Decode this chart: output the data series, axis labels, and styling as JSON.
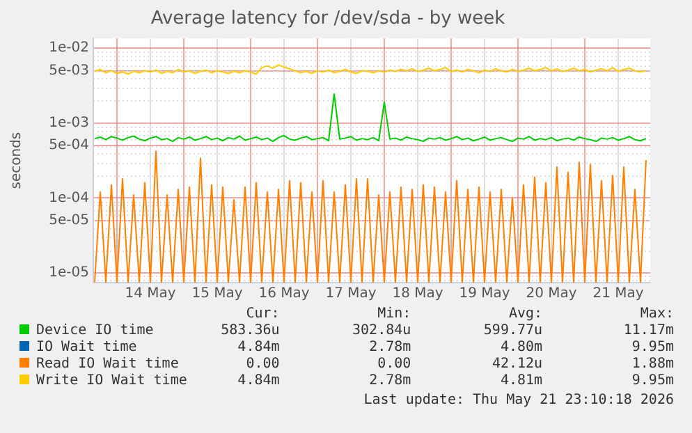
{
  "chart_data": {
    "type": "line",
    "title": "Average latency for /dev/sda - by week",
    "ylabel": "seconds",
    "log": "y",
    "grid": true,
    "legend": "bottom",
    "marker": "none",
    "xlim": [
      "2026-05-13T15:30",
      "2026-05-21T23:30"
    ],
    "xticks": [
      {
        "value": "2026-05-14T00:00",
        "label": null
      },
      {
        "value": "2026-05-14T12:00",
        "label": "14 May"
      },
      {
        "value": "2026-05-15T00:00",
        "label": null
      },
      {
        "value": "2026-05-15T12:00",
        "label": "15 May"
      },
      {
        "value": "2026-05-16T00:00",
        "label": null
      },
      {
        "value": "2026-05-16T12:00",
        "label": "16 May"
      },
      {
        "value": "2026-05-17T00:00",
        "label": null
      },
      {
        "value": "2026-05-17T12:00",
        "label": "17 May"
      },
      {
        "value": "2026-05-18T00:00",
        "label": null
      },
      {
        "value": "2026-05-18T12:00",
        "label": "18 May"
      },
      {
        "value": "2026-05-19T00:00",
        "label": null
      },
      {
        "value": "2026-05-19T12:00",
        "label": "19 May"
      },
      {
        "value": "2026-05-20T00:00",
        "label": null
      },
      {
        "value": "2026-05-20T12:00",
        "label": "20 May"
      },
      {
        "value": "2026-05-21T00:00",
        "label": null
      },
      {
        "value": "2026-05-21T12:00",
        "label": "21 May"
      }
    ],
    "ylim": [
      7.4e-06,
      0.0135
    ],
    "yticks": [
      {
        "value": 0.01,
        "label": "1e-02"
      },
      {
        "value": 0.005,
        "label": "5e-03"
      },
      {
        "value": 0.001,
        "label": "1e-03"
      },
      {
        "value": 0.0005,
        "label": "5e-04"
      },
      {
        "value": 0.0001,
        "label": "1e-04"
      },
      {
        "value": 5e-05,
        "label": "5e-05"
      },
      {
        "value": 1e-05,
        "label": "1e-05"
      }
    ],
    "x": [
      "2026-05-13T16:00",
      "2026-05-13T18:00",
      "2026-05-13T20:00",
      "2026-05-13T22:00",
      "2026-05-14T00:00",
      "2026-05-14T02:00",
      "2026-05-14T04:00",
      "2026-05-14T06:00",
      "2026-05-14T08:00",
      "2026-05-14T10:00",
      "2026-05-14T12:00",
      "2026-05-14T14:00",
      "2026-05-14T16:00",
      "2026-05-14T18:00",
      "2026-05-14T20:00",
      "2026-05-14T22:00",
      "2026-05-15T00:00",
      "2026-05-15T02:00",
      "2026-05-15T04:00",
      "2026-05-15T06:00",
      "2026-05-15T08:00",
      "2026-05-15T10:00",
      "2026-05-15T12:00",
      "2026-05-15T14:00",
      "2026-05-15T16:00",
      "2026-05-15T18:00",
      "2026-05-15T20:00",
      "2026-05-15T22:00",
      "2026-05-16T00:00",
      "2026-05-16T02:00",
      "2026-05-16T04:00",
      "2026-05-16T06:00",
      "2026-05-16T08:00",
      "2026-05-16T10:00",
      "2026-05-16T12:00",
      "2026-05-16T14:00",
      "2026-05-16T16:00",
      "2026-05-16T18:00",
      "2026-05-16T20:00",
      "2026-05-16T22:00",
      "2026-05-17T00:00",
      "2026-05-17T02:00",
      "2026-05-17T04:00",
      "2026-05-17T06:00",
      "2026-05-17T08:00",
      "2026-05-17T10:00",
      "2026-05-17T12:00",
      "2026-05-17T14:00",
      "2026-05-17T16:00",
      "2026-05-17T18:00",
      "2026-05-17T20:00",
      "2026-05-17T22:00",
      "2026-05-18T00:00",
      "2026-05-18T02:00",
      "2026-05-18T04:00",
      "2026-05-18T06:00",
      "2026-05-18T08:00",
      "2026-05-18T10:00",
      "2026-05-18T12:00",
      "2026-05-18T14:00",
      "2026-05-18T16:00",
      "2026-05-18T18:00",
      "2026-05-18T20:00",
      "2026-05-18T22:00",
      "2026-05-19T00:00",
      "2026-05-19T02:00",
      "2026-05-19T04:00",
      "2026-05-19T06:00",
      "2026-05-19T08:00",
      "2026-05-19T10:00",
      "2026-05-19T12:00",
      "2026-05-19T14:00",
      "2026-05-19T16:00",
      "2026-05-19T18:00",
      "2026-05-19T20:00",
      "2026-05-19T22:00",
      "2026-05-20T00:00",
      "2026-05-20T02:00",
      "2026-05-20T04:00",
      "2026-05-20T06:00",
      "2026-05-20T08:00",
      "2026-05-20T10:00",
      "2026-05-20T12:00",
      "2026-05-20T14:00",
      "2026-05-20T16:00",
      "2026-05-20T18:00",
      "2026-05-20T20:00",
      "2026-05-20T22:00",
      "2026-05-21T00:00",
      "2026-05-21T02:00",
      "2026-05-21T04:00",
      "2026-05-21T06:00",
      "2026-05-21T08:00",
      "2026-05-21T10:00",
      "2026-05-21T12:00",
      "2026-05-21T14:00",
      "2026-05-21T16:00",
      "2026-05-21T18:00",
      "2026-05-21T20:00",
      "2026-05-21T22:00"
    ],
    "series": [
      {
        "name": "Device IO time",
        "color": "#00cc00",
        "values": [
          0.00062,
          0.00065,
          0.0006,
          0.00066,
          0.00063,
          0.00059,
          0.00064,
          0.00067,
          0.00061,
          0.00058,
          0.00063,
          0.00066,
          0.0006,
          0.00062,
          0.00057,
          0.00064,
          0.00061,
          0.00065,
          0.00059,
          0.00062,
          0.00066,
          0.0006,
          0.00063,
          0.00058,
          0.00064,
          0.00061,
          0.00067,
          0.00059,
          0.00062,
          0.00065,
          0.0006,
          0.00063,
          0.00057,
          0.00064,
          0.00068,
          0.00061,
          0.00059,
          0.00063,
          0.00066,
          0.0006,
          0.00062,
          0.00064,
          0.00058,
          0.00245,
          0.00061,
          0.00063,
          0.00066,
          0.00059,
          0.00062,
          0.0006,
          0.00064,
          0.00058,
          0.0019,
          0.00061,
          0.00063,
          0.00059,
          0.00065,
          0.00062,
          0.0006,
          0.00057,
          0.00063,
          0.00061,
          0.00064,
          0.00059,
          0.00062,
          0.00066,
          0.0006,
          0.00063,
          0.00058,
          0.00061,
          0.00065,
          0.00059,
          0.00062,
          0.00064,
          0.0006,
          0.00057,
          0.00063,
          0.00061,
          0.00066,
          0.00059,
          0.00062,
          0.0006,
          0.00064,
          0.00058,
          0.00061,
          0.00063,
          0.00059,
          0.00065,
          0.00062,
          0.0006,
          0.00057,
          0.00063,
          0.00061,
          0.00064,
          0.00059,
          0.00062,
          0.00066,
          0.0006,
          0.00058,
          0.00062
        ]
      },
      {
        "name": "IO Wait time",
        "color": "#0066b3",
        "values": [
          null,
          null,
          null,
          null,
          null,
          null,
          null,
          null,
          null,
          null,
          null,
          null,
          null,
          null,
          null,
          null,
          null,
          null,
          null,
          null,
          null,
          null,
          null,
          null,
          null,
          null,
          null,
          null,
          null,
          null,
          null,
          null,
          null,
          null,
          null,
          null,
          null,
          null,
          null,
          null,
          null,
          null,
          null,
          null,
          null,
          null,
          null,
          null,
          null,
          null,
          null,
          null,
          null,
          null,
          null,
          null,
          null,
          null,
          null,
          null,
          null,
          null,
          null,
          null,
          null,
          null,
          null,
          null,
          null,
          null,
          null,
          null,
          null,
          null,
          null,
          null,
          null,
          null,
          null,
          null,
          null,
          null,
          null,
          null,
          null,
          null,
          null,
          null,
          null,
          null,
          null,
          null,
          null,
          null,
          null,
          null,
          null,
          null,
          null,
          null
        ]
      },
      {
        "name": "Read IO Wait time",
        "color": "#ff8000",
        "values": [
          7.5e-06,
          0.00012,
          7.5e-06,
          0.00015,
          7.5e-06,
          0.00018,
          7.5e-06,
          0.00011,
          7.5e-06,
          0.00016,
          7.5e-06,
          0.00042,
          7.5e-06,
          0.00011,
          7.5e-06,
          0.00013,
          7.5e-06,
          0.00014,
          7.5e-06,
          0.00034,
          7.5e-06,
          0.00015,
          7.5e-06,
          0.00014,
          7.5e-06,
          9.5e-05,
          7.5e-06,
          0.00014,
          7.5e-06,
          0.00016,
          7.5e-06,
          0.00012,
          7.5e-06,
          0.00013,
          7.5e-06,
          0.00017,
          7.5e-06,
          0.00016,
          7.5e-06,
          0.00012,
          7.5e-06,
          0.00017,
          7.5e-06,
          0.00012,
          7.5e-06,
          0.00015,
          7.5e-06,
          0.00018,
          7.5e-06,
          0.00018,
          7.5e-06,
          0.00011,
          7.5e-06,
          0.00012,
          7.5e-06,
          0.00014,
          7.5e-06,
          0.00013,
          7.5e-06,
          0.00015,
          7.5e-06,
          0.00014,
          7.5e-06,
          0.00012,
          7.5e-06,
          0.00017,
          7.5e-06,
          0.00013,
          7.5e-06,
          0.00014,
          7.5e-06,
          0.00012,
          7.5e-06,
          0.00013,
          7.5e-06,
          0.0001,
          7.5e-06,
          0.00015,
          7.5e-06,
          0.00019,
          7.5e-06,
          0.00016,
          7.5e-06,
          0.00026,
          7.5e-06,
          0.00022,
          7.5e-06,
          0.0003,
          7.5e-06,
          0.00028,
          7.5e-06,
          0.00017,
          7.5e-06,
          0.0002,
          7.5e-06,
          0.00026,
          7.5e-06,
          0.00013,
          7.5e-06,
          0.00032
        ]
      },
      {
        "name": "Write IO Wait time",
        "color": "#ffcc00",
        "values": [
          0.0049,
          0.0052,
          0.0047,
          0.005,
          0.0046,
          0.0048,
          0.0045,
          0.0049,
          0.0047,
          0.005,
          0.0048,
          0.0051,
          0.0046,
          0.0049,
          0.0047,
          0.0052,
          0.0048,
          0.005,
          0.0046,
          0.0049,
          0.0051,
          0.0047,
          0.005,
          0.0048,
          0.0046,
          0.0049,
          0.0047,
          0.005,
          0.0048,
          0.0045,
          0.0055,
          0.0058,
          0.0054,
          0.006,
          0.0056,
          0.0053,
          0.005,
          0.0047,
          0.0049,
          0.0046,
          0.005,
          0.0048,
          0.0051,
          0.0047,
          0.0049,
          0.0052,
          0.0048,
          0.0046,
          0.005,
          0.0049,
          0.0047,
          0.005,
          0.0048,
          0.0051,
          0.0049,
          0.0052,
          0.005,
          0.0053,
          0.0049,
          0.0051,
          0.0054,
          0.005,
          0.0052,
          0.0055,
          0.0049,
          0.0051,
          0.0048,
          0.0052,
          0.005,
          0.0047,
          0.0051,
          0.0049,
          0.0053,
          0.005,
          0.0048,
          0.0052,
          0.0049,
          0.0051,
          0.0054,
          0.005,
          0.0052,
          0.0055,
          0.005,
          0.0053,
          0.0049,
          0.0051,
          0.0054,
          0.005,
          0.0052,
          0.0048,
          0.0051,
          0.0053,
          0.005,
          0.0055,
          0.0049,
          0.0052,
          0.0054,
          0.005,
          0.0048,
          0.005
        ]
      }
    ],
    "annotations": [
      "Cur:",
      "Min:",
      "Avg:",
      "Max:",
      "583.36u",
      "302.84u",
      "599.77u",
      "11.17m",
      "4.84m",
      "2.78m",
      "4.80m",
      "9.95m",
      "0.00",
      "0.00",
      "42.12u",
      "1.88m",
      "4.84m",
      "2.78m",
      "4.81m",
      "9.95m",
      "Last update: Thu May 21 23:10:18 2026"
    ]
  }
}
